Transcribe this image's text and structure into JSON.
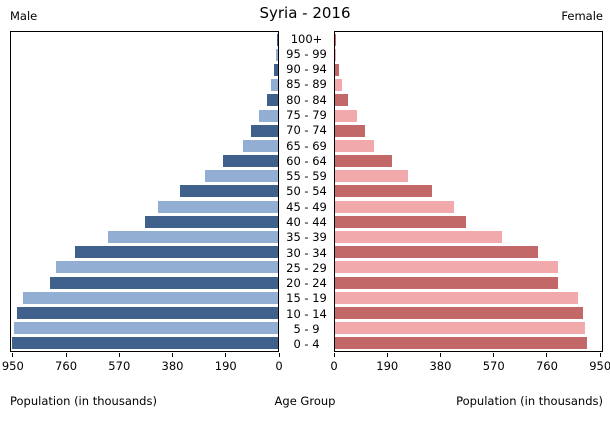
{
  "header": {
    "male_label": "Male",
    "title": "Syria - 2016",
    "female_label": "Female"
  },
  "footer": {
    "left_label": "Population (in thousands)",
    "center_label": "Age Group",
    "right_label": "Population (in thousands)"
  },
  "colors": {
    "male_dark": "#3f618c",
    "male_light": "#92aed3",
    "female_dark": "#c26868",
    "female_light": "#f2a9ac",
    "axis": "#000000",
    "background": "#ffffff"
  },
  "chart_data": {
    "type": "bar",
    "subtype": "population_pyramid",
    "title": "Syria - 2016",
    "unit": "thousands",
    "xlabel": "Population (in thousands)",
    "ylabel": "Age Group",
    "xlim": [
      0,
      960
    ],
    "grid": false,
    "legend": "none",
    "categories_top_to_bottom": [
      "100+",
      "95 - 99",
      "90 - 94",
      "85 - 89",
      "80 - 84",
      "75 - 79",
      "70 - 74",
      "65 - 69",
      "60 - 64",
      "55 - 59",
      "50 - 54",
      "45 - 49",
      "40 - 44",
      "35 - 39",
      "30 - 34",
      "25 - 29",
      "20 - 24",
      "15 - 19",
      "10 - 14",
      "5 - 9",
      "0 - 4"
    ],
    "series": [
      {
        "name": "Male",
        "side": "left",
        "values_top_to_bottom": [
          2,
          7,
          14,
          24,
          40,
          69,
          96,
          126,
          196,
          262,
          354,
          433,
          478,
          611,
          730,
          800,
          819,
          917,
          940,
          950,
          955
        ]
      },
      {
        "name": "Female",
        "side": "right",
        "values_top_to_bottom": [
          2,
          4,
          14,
          26,
          45,
          79,
          107,
          142,
          204,
          261,
          350,
          427,
          471,
          602,
          729,
          803,
          801,
          872,
          892,
          900,
          905
        ]
      }
    ],
    "ticks_male": [
      950,
      760,
      570,
      380,
      190,
      0
    ],
    "ticks_female": [
      0,
      190,
      380,
      570,
      760,
      950
    ]
  }
}
